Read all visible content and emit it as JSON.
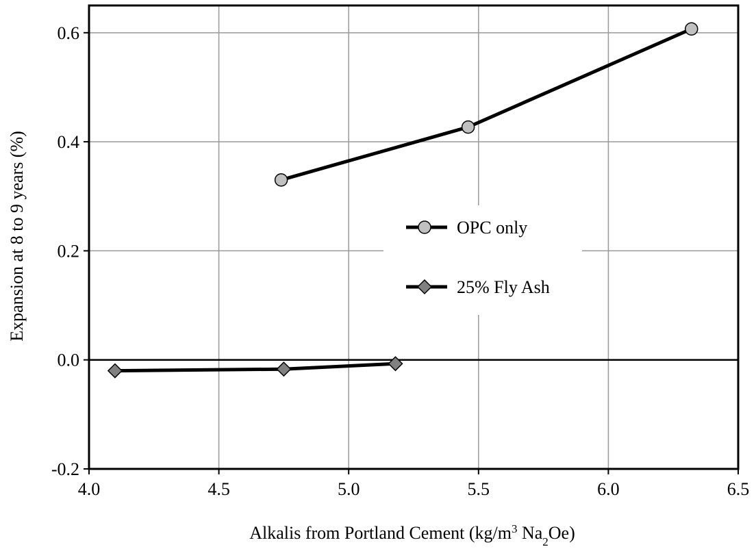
{
  "chart_data": {
    "type": "line",
    "title": "",
    "xlabel_parts": {
      "before_sup": "Alkalis from Portland Cement (kg/m",
      "sup": "3",
      "middle": " Na",
      "sub": "2",
      "after": "Oe)"
    },
    "ylabel": "Expansion at 8 to 9 years (%)",
    "xlim": [
      4.0,
      6.5
    ],
    "ylim": [
      -0.2,
      0.65
    ],
    "x_ticks": [
      "4.0",
      "4.5",
      "5.0",
      "5.5",
      "6.0",
      "6.5"
    ],
    "y_ticks": [
      "-0.2",
      "0.0",
      "0.2",
      "0.4",
      "0.6"
    ],
    "grid": true,
    "legend_position": "center-right",
    "series": [
      {
        "name": "OPC only",
        "marker": "circle",
        "marker_color": "#c0c0c0",
        "line_color": "#000000",
        "x": [
          4.74,
          5.46,
          6.32
        ],
        "y": [
          0.33,
          0.427,
          0.607
        ]
      },
      {
        "name": "25% Fly Ash",
        "marker": "diamond",
        "marker_color": "#808080",
        "line_color": "#000000",
        "x": [
          4.1,
          4.75,
          5.18
        ],
        "y": [
          -0.02,
          -0.017,
          -0.007
        ]
      }
    ]
  }
}
